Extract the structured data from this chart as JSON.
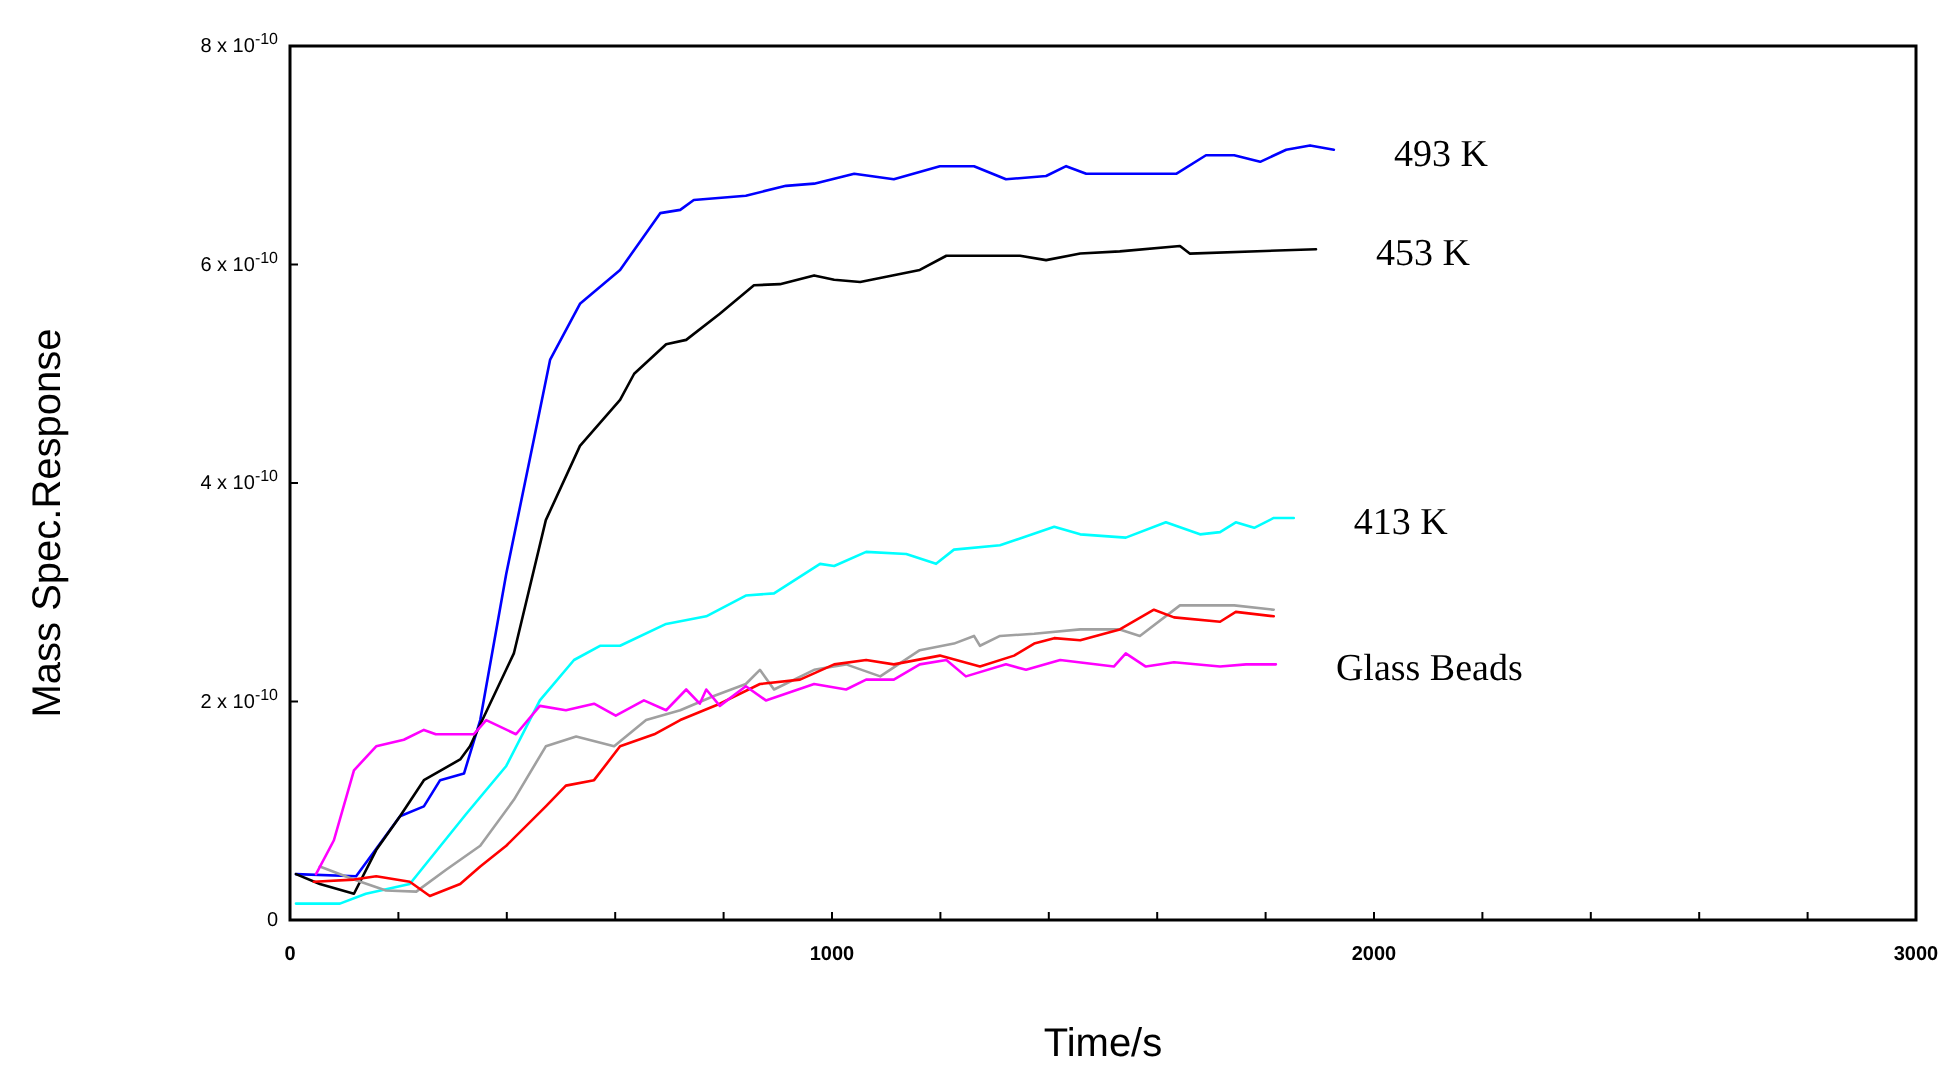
{
  "chart_data": {
    "type": "line",
    "xlabel": "Time/s",
    "ylabel": "Mass Spec.Response",
    "xlim": [
      0,
      3000
    ],
    "ylim": [
      0,
      8e-10
    ],
    "xticks": [
      0,
      {
        "value": 200,
        "label": null
      },
      {
        "value": 400,
        "label": null
      },
      {
        "value": 600,
        "label": null
      },
      {
        "value": 800,
        "label": null
      },
      1000,
      {
        "value": 1200,
        "label": null
      },
      {
        "value": 1400,
        "label": null
      },
      {
        "value": 1600,
        "label": null
      },
      {
        "value": 1800,
        "label": null
      },
      2000,
      {
        "value": 2200,
        "label": null
      },
      {
        "value": 2400,
        "label": null
      },
      {
        "value": 2600,
        "label": null
      },
      {
        "value": 2800,
        "label": null
      },
      3000
    ],
    "yticks": [
      0,
      {
        "value": 2e-10,
        "label": "2 x 10$^{-10}$"
      },
      {
        "value": 4e-10,
        "label": "4 x 10$^{-10}$"
      },
      {
        "value": 6e-10,
        "label": "6 x 10$^{-10}$"
      },
      {
        "value": 8e-10,
        "label": "8 x 10$^{-10}$"
      }
    ],
    "grid": false,
    "marker": "none",
    "line_style": "solid",
    "series": [
      {
        "name": "493 K",
        "color": "#0000ff",
        "x": [
          11,
          122,
          203,
          247,
          277,
          321,
          351,
          399,
          450,
          480,
          535,
          609,
          683,
          720,
          745,
          841,
          915,
          967,
          1041,
          1114,
          1199,
          1262,
          1321,
          1395,
          1432,
          1469,
          1531,
          1635,
          1690,
          1742,
          1790,
          1838,
          1882,
          1926
        ],
        "values": [
          4.2e-11,
          4e-11,
          9.5e-11,
          1.04e-10,
          1.28e-10,
          1.34e-10,
          1.83e-10,
          3.17e-10,
          4.4e-10,
          5.13e-10,
          5.64e-10,
          5.95e-10,
          6.47e-10,
          6.5e-10,
          6.59e-10,
          6.63e-10,
          6.72e-10,
          6.74e-10,
          6.83e-10,
          6.78e-10,
          6.9e-10,
          6.9e-10,
          6.78e-10,
          6.81e-10,
          6.9e-10,
          6.83e-10,
          6.83e-10,
          6.83e-10,
          7e-10,
          7e-10,
          6.94e-10,
          7.05e-10,
          7.09e-10,
          7.05e-10
        ]
      },
      {
        "name": "453 K",
        "color": "#000000",
        "x": [
          11,
          55,
          118,
          159,
          203,
          247,
          314,
          332,
          413,
          472,
          535,
          609,
          635,
          694,
          731,
          793,
          856,
          904,
          967,
          1004,
          1052,
          1162,
          1211,
          1347,
          1395,
          1458,
          1531,
          1642,
          1660,
          1893
        ],
        "values": [
          4.2e-11,
          3.3e-11,
          2.4e-11,
          6.4e-11,
          9.5e-11,
          1.28e-10,
          1.47e-10,
          1.59e-10,
          2.44e-10,
          3.66e-10,
          4.34e-10,
          4.76e-10,
          5e-10,
          5.27e-10,
          5.31e-10,
          5.55e-10,
          5.81e-10,
          5.82e-10,
          5.9e-10,
          5.86e-10,
          5.84e-10,
          5.95e-10,
          6.08e-10,
          6.08e-10,
          6.04e-10,
          6.1e-10,
          6.12e-10,
          6.17e-10,
          6.1e-10,
          6.14e-10
        ]
      },
      {
        "name": "413 K",
        "color": "#00ffff",
        "x": [
          11,
          92,
          140,
          221,
          325,
          399,
          461,
          524,
          572,
          609,
          694,
          768,
          841,
          893,
          978,
          1004,
          1063,
          1137,
          1192,
          1225,
          1310,
          1410,
          1458,
          1542,
          1616,
          1679,
          1716,
          1745,
          1779,
          1815,
          1852
        ],
        "values": [
          1.5e-11,
          1.5e-11,
          2.4e-11,
          3.3e-11,
          9.7e-11,
          1.41e-10,
          2.01e-10,
          2.38e-10,
          2.51e-10,
          2.51e-10,
          2.71e-10,
          2.78e-10,
          2.97e-10,
          2.99e-10,
          3.26e-10,
          3.24e-10,
          3.37e-10,
          3.35e-10,
          3.26e-10,
          3.39e-10,
          3.43e-10,
          3.6e-10,
          3.53e-10,
          3.5e-10,
          3.64e-10,
          3.53e-10,
          3.55e-10,
          3.64e-10,
          3.59e-10,
          3.68e-10,
          3.68e-10
        ]
      },
      {
        "color": "#a0a0a0",
        "x": [
          55,
          118,
          177,
          233,
          288,
          351,
          413,
          472,
          528,
          598,
          657,
          720,
          782,
          841,
          867,
          893,
          967,
          1026,
          1089,
          1162,
          1225,
          1262,
          1273,
          1310,
          1373,
          1458,
          1531,
          1568,
          1642,
          1742,
          1815
        ],
        "values": [
          4.9e-11,
          3.7e-11,
          2.7e-11,
          2.6e-11,
          4.6e-11,
          6.8e-11,
          1.1e-10,
          1.59e-10,
          1.68e-10,
          1.59e-10,
          1.83e-10,
          1.92e-10,
          2.05e-10,
          2.16e-10,
          2.29e-10,
          2.11e-10,
          2.29e-10,
          2.34e-10,
          2.23e-10,
          2.47e-10,
          2.53e-10,
          2.6e-10,
          2.51e-10,
          2.6e-10,
          2.62e-10,
          2.66e-10,
          2.66e-10,
          2.6e-10,
          2.88e-10,
          2.88e-10,
          2.84e-10
        ]
      },
      {
        "color": "#ff0000",
        "x": [
          44,
          118,
          159,
          221,
          258,
          314,
          351,
          399,
          472,
          509,
          561,
          609,
          672,
          720,
          793,
          867,
          941,
          1004,
          1063,
          1114,
          1199,
          1273,
          1336,
          1373,
          1410,
          1458,
          1531,
          1594,
          1631,
          1716,
          1745,
          1815
        ],
        "values": [
          3.5e-11,
          3.7e-11,
          4e-11,
          3.5e-11,
          2.2e-11,
          3.3e-11,
          4.9e-11,
          6.8e-11,
          1.04e-10,
          1.23e-10,
          1.28e-10,
          1.59e-10,
          1.7e-10,
          1.83e-10,
          1.98e-10,
          2.16e-10,
          2.2e-10,
          2.34e-10,
          2.38e-10,
          2.34e-10,
          2.42e-10,
          2.32e-10,
          2.42e-10,
          2.53e-10,
          2.58e-10,
          2.56e-10,
          2.66e-10,
          2.84e-10,
          2.77e-10,
          2.73e-10,
          2.82e-10,
          2.78e-10
        ]
      },
      {
        "name": "Glass Beads",
        "color": "#ff00ff",
        "x": [
          48,
          81,
          118,
          159,
          210,
          247,
          269,
          339,
          362,
          417,
          461,
          509,
          561,
          601,
          653,
          694,
          731,
          756,
          768,
          793,
          841,
          878,
          967,
          1026,
          1063,
          1114,
          1162,
          1211,
          1247,
          1321,
          1358,
          1421,
          1520,
          1542,
          1579,
          1631,
          1716,
          1764,
          1819
        ],
        "values": [
          4.2e-11,
          7.3e-11,
          1.37e-10,
          1.59e-10,
          1.65e-10,
          1.74e-10,
          1.7e-10,
          1.7e-10,
          1.83e-10,
          1.7e-10,
          1.96e-10,
          1.92e-10,
          1.98e-10,
          1.87e-10,
          2.01e-10,
          1.92e-10,
          2.11e-10,
          1.98e-10,
          2.11e-10,
          1.96e-10,
          2.14e-10,
          2.01e-10,
          2.16e-10,
          2.11e-10,
          2.2e-10,
          2.2e-10,
          2.34e-10,
          2.38e-10,
          2.23e-10,
          2.34e-10,
          2.29e-10,
          2.38e-10,
          2.32e-10,
          2.44e-10,
          2.32e-10,
          2.36e-10,
          2.32e-10,
          2.34e-10,
          2.34e-10
        ]
      }
    ]
  }
}
